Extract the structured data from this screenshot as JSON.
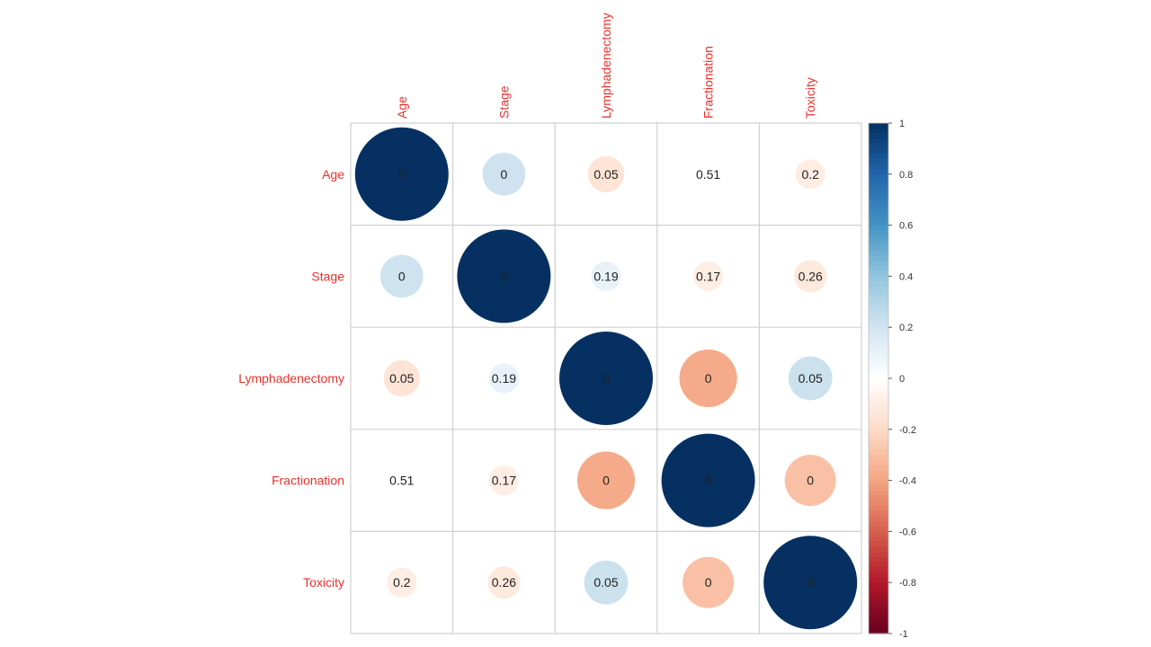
{
  "chart_data": {
    "type": "heatmap",
    "subtype": "correlation-circle-matrix",
    "variables": [
      "Age",
      "Stage",
      "Lymphadenectomy",
      "Fractionation",
      "Toxicity"
    ],
    "correlations": [
      [
        1.0,
        0.21,
        -0.15,
        -0.01,
        -0.1
      ],
      [
        0.21,
        1.0,
        0.1,
        -0.1,
        -0.12
      ],
      [
        -0.15,
        0.1,
        1.0,
        -0.38,
        0.22
      ],
      [
        -0.01,
        -0.1,
        -0.38,
        1.0,
        -0.3
      ],
      [
        -0.1,
        -0.12,
        0.22,
        -0.3,
        1.0
      ]
    ],
    "cell_labels": [
      [
        "0",
        "0",
        "0.05",
        "0.51",
        "0.2"
      ],
      [
        "0",
        "0",
        "0.19",
        "0.17",
        "0.26"
      ],
      [
        "0.05",
        "0.19",
        "0",
        "0",
        "0.05"
      ],
      [
        "0.51",
        "0.17",
        "0",
        "0",
        "0"
      ],
      [
        "0.2",
        "0.26",
        "0.05",
        "0",
        "0"
      ]
    ],
    "colorbar": {
      "range": [
        -1,
        1
      ],
      "ticks": [
        "1",
        "0.8",
        "0.6",
        "0.4",
        "0.2",
        "0",
        "-0.2",
        "-0.4",
        "-0.6",
        "-0.8",
        "-1"
      ],
      "placement": "right"
    },
    "palette": [
      "#67001F",
      "#B2182B",
      "#D6604D",
      "#F4A582",
      "#FDDBC7",
      "#FFFFFF",
      "#D1E5F0",
      "#92C5DE",
      "#4393C3",
      "#2166AC",
      "#053061"
    ],
    "label_color": "#E8322D",
    "grid": true
  }
}
